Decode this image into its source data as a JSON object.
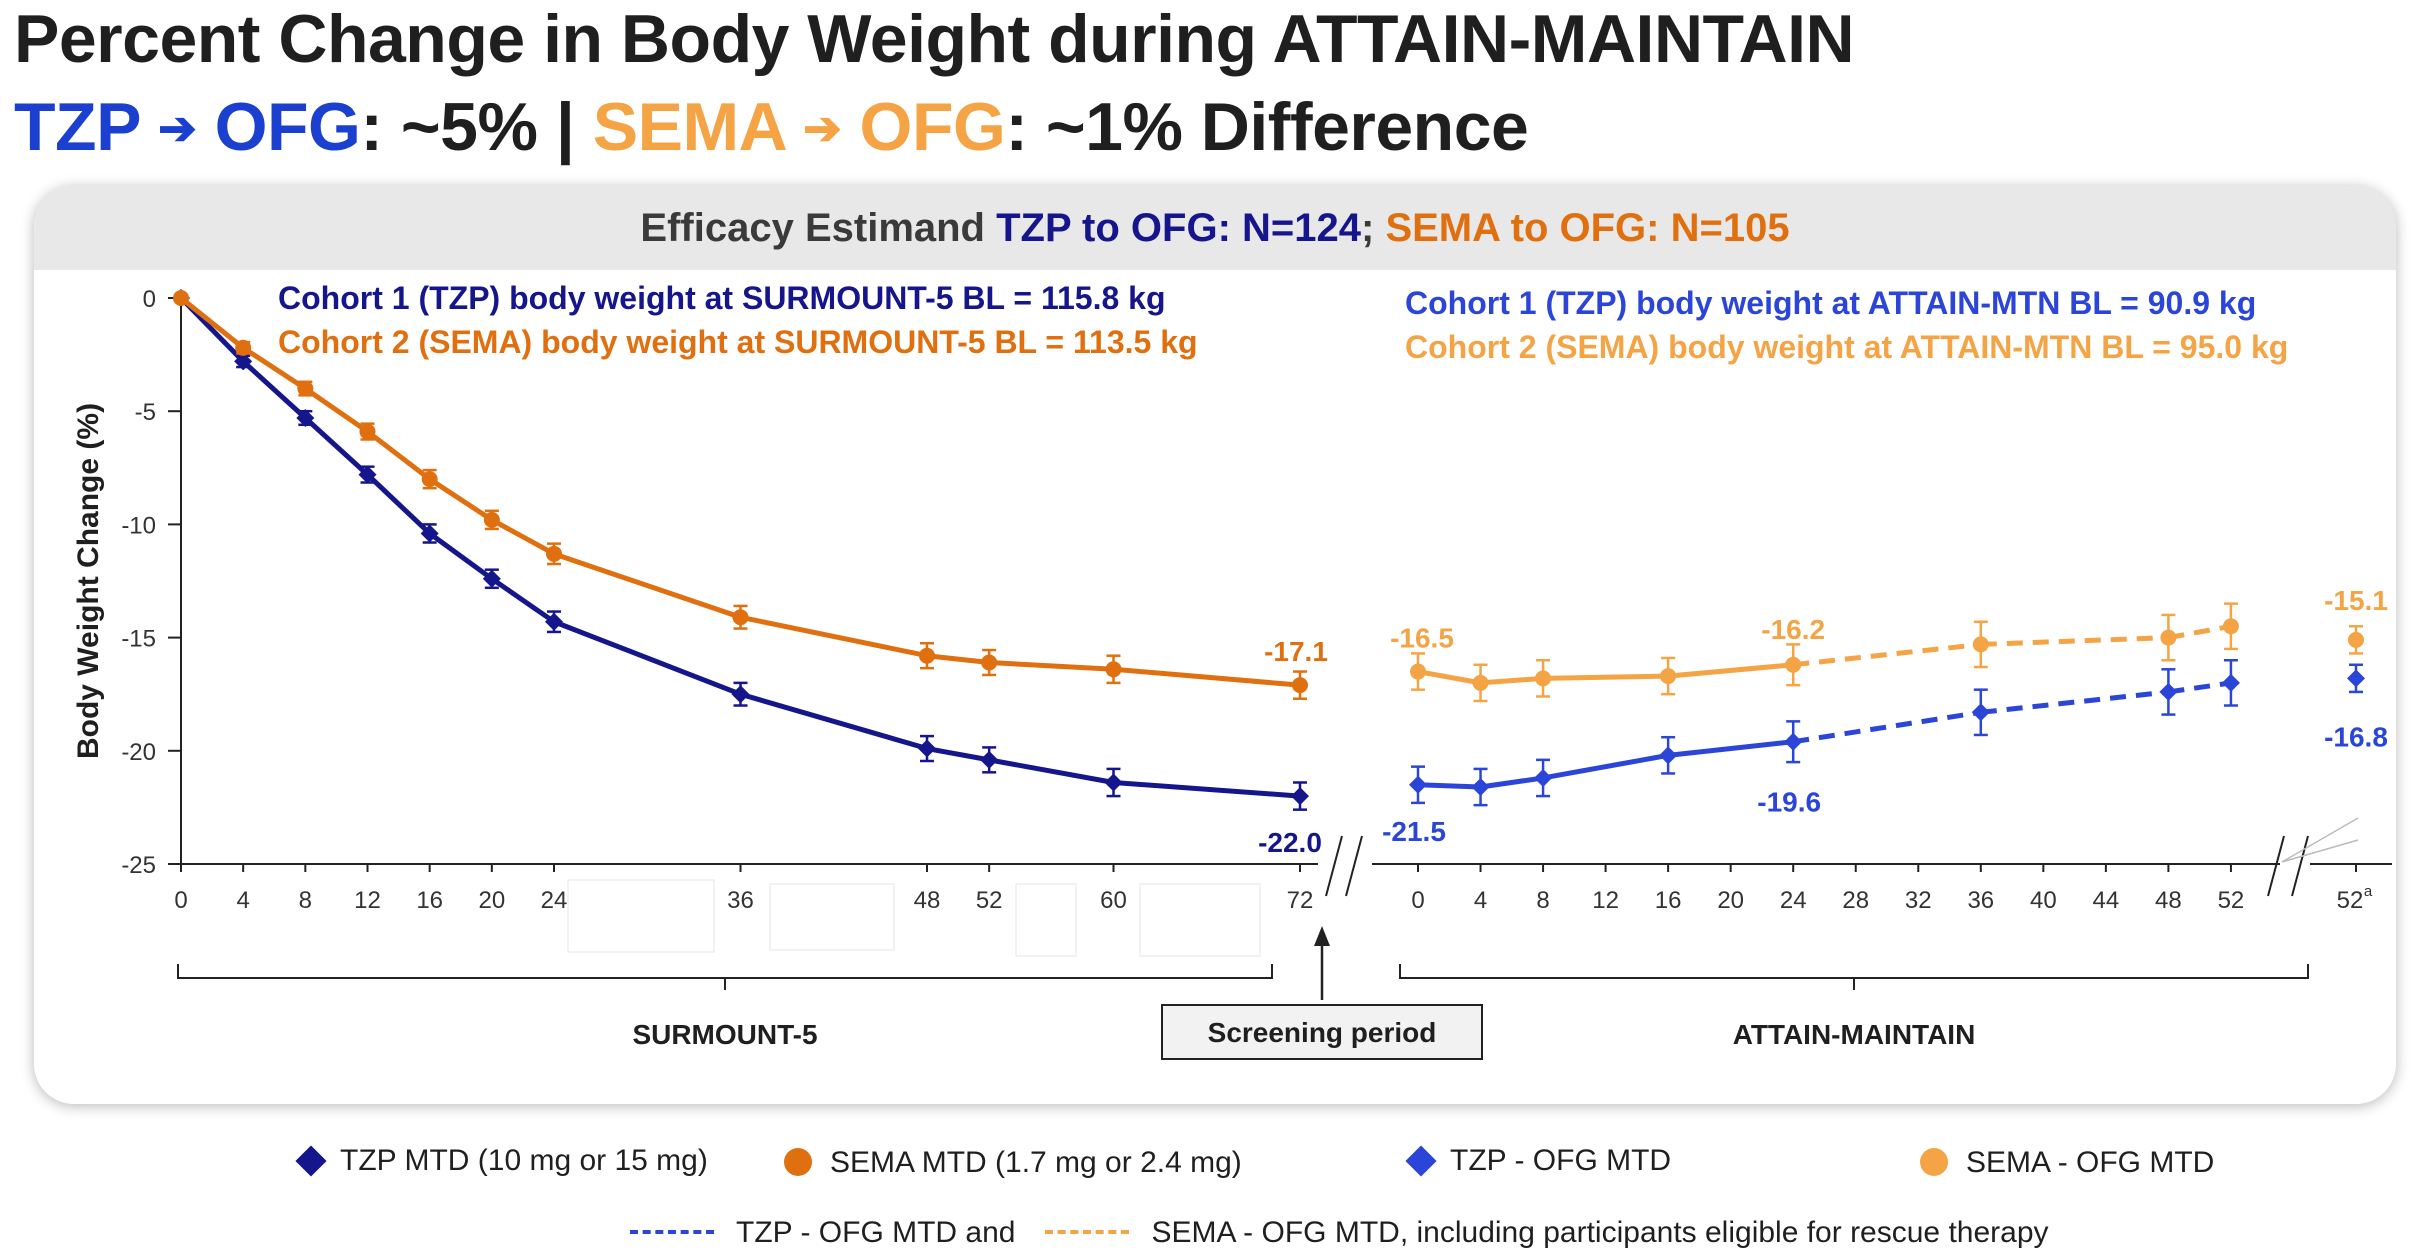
{
  "header": {
    "title": "Percent Change in Body Weight during ATTAIN-MAINTAIN",
    "subtitle_parts": {
      "tzp": "TZP",
      "arrow1": "➔",
      "ofg1": "OFG",
      "mid": ": ~5% | ",
      "sema": "SEMA",
      "arrow2": "➔",
      "ofg2": "OFG",
      "tail": ": ~1% Difference"
    }
  },
  "colors": {
    "tzp_dark": "#15158c",
    "sema_dark": "#e0700f",
    "tzp_light": "#2a45d8",
    "sema_light": "#f5a445",
    "subtitle_blue": "#1b3fcf",
    "subtitle_orange": "#f5a445"
  },
  "card": {
    "header_prefix": "Efficacy Estimand ",
    "header_tzp": "TZP to OFG: N=124",
    "header_sep": "; ",
    "header_sema": "SEMA to OFG: N=105"
  },
  "chart_data": {
    "type": "line",
    "ylabel": "Body Weight Change (%)",
    "ylim": [
      -25,
      0
    ],
    "yticks": [
      "0",
      "-5",
      "-10",
      "-15",
      "-20",
      "-25"
    ],
    "ytick_values": [
      0,
      -5,
      -10,
      -15,
      -20,
      -25
    ],
    "panels": [
      {
        "name": "SURMOUNT-5",
        "xticks": [
          0,
          4,
          8,
          12,
          16,
          20,
          24,
          36,
          48,
          52,
          60,
          72
        ],
        "xlim": [
          0,
          72
        ],
        "notes": [
          {
            "text": "Cohort 1 (TZP) body weight at SURMOUNT-5 BL = 115.8 kg",
            "series": "tzp"
          },
          {
            "text": "Cohort 2 (SEMA) body weight at SURMOUNT-5  BL = 113.5 kg",
            "series": "sema"
          }
        ],
        "series": [
          {
            "key": "tzp",
            "x": [
              0,
              4,
              8,
              12,
              16,
              20,
              24,
              36,
              48,
              52,
              60,
              72
            ],
            "y": [
              0,
              -2.8,
              -5.3,
              -7.8,
              -10.4,
              -12.4,
              -14.3,
              -17.5,
              -19.9,
              -20.4,
              -21.4,
              -22.0
            ],
            "err": [
              0,
              0.25,
              0.3,
              0.35,
              0.4,
              0.4,
              0.45,
              0.5,
              0.55,
              0.55,
              0.6,
              0.6
            ],
            "dashed_from": null,
            "end_label": "-22.0"
          },
          {
            "key": "sema",
            "x": [
              0,
              4,
              8,
              12,
              16,
              20,
              24,
              36,
              48,
              52,
              60,
              72
            ],
            "y": [
              0,
              -2.2,
              -4.0,
              -5.9,
              -8.0,
              -9.8,
              -11.3,
              -14.1,
              -15.8,
              -16.1,
              -16.4,
              -17.1
            ],
            "err": [
              0,
              0.25,
              0.3,
              0.35,
              0.4,
              0.4,
              0.45,
              0.5,
              0.55,
              0.55,
              0.6,
              0.6
            ],
            "dashed_from": null,
            "end_label": "-17.1"
          }
        ]
      },
      {
        "name": "ATTAIN-MAINTAIN",
        "xticks": [
          "0",
          "4",
          "8",
          "12",
          "16",
          "20",
          "24",
          "28",
          "32",
          "36",
          "40",
          "44",
          "48",
          "52",
          "52a"
        ],
        "xlim": [
          0,
          60
        ],
        "notes": [
          {
            "text": "Cohort 1 (TZP) body weight at ATTAIN-MTN BL = 90.9 kg",
            "series": "tzp_ofg"
          },
          {
            "text": "Cohort 2 (SEMA)  body weight at ATTAIN-MTN BL = 95.0 kg",
            "series": "sema_ofg"
          }
        ],
        "series": [
          {
            "key": "tzp_ofg",
            "x": [
              0,
              4,
              8,
              16,
              24,
              36,
              48,
              52,
              60
            ],
            "y": [
              -21.5,
              -21.6,
              -21.2,
              -20.2,
              -19.6,
              -18.3,
              -17.4,
              -17.0,
              -16.8
            ],
            "err": [
              0.8,
              0.8,
              0.8,
              0.8,
              0.9,
              1.0,
              1.0,
              1.0,
              0.6
            ],
            "dashed_from": 24,
            "labels": [
              {
                "at": 0,
                "text": "-21.5"
              },
              {
                "at": 24,
                "text": "-19.6"
              },
              {
                "at": 60,
                "text": "-16.8"
              }
            ]
          },
          {
            "key": "sema_ofg",
            "x": [
              0,
              4,
              8,
              16,
              24,
              36,
              48,
              52,
              60
            ],
            "y": [
              -16.5,
              -17.0,
              -16.8,
              -16.7,
              -16.2,
              -15.3,
              -15.0,
              -14.5,
              -15.1
            ],
            "err": [
              0.8,
              0.8,
              0.8,
              0.8,
              0.9,
              1.0,
              1.0,
              1.0,
              0.6
            ],
            "dashed_from": 24,
            "labels": [
              {
                "at": 0,
                "text": "-16.5"
              },
              {
                "at": 24,
                "text": "-16.2"
              },
              {
                "at": 60,
                "text": "-15.1"
              }
            ]
          }
        ]
      }
    ],
    "screening_label": "Screening period"
  },
  "legend": {
    "tzp": "TZP MTD (10 mg or 15 mg)",
    "sema": "SEMA MTD (1.7 mg or 2.4 mg)",
    "tzp_ofg": "TZP - OFG MTD",
    "sema_ofg": "SEMA - OFG MTD",
    "dash_tzp": "TZP - OFG MTD and",
    "dash_sema": "SEMA - OFG MTD, including participants eligible for rescue therapy"
  }
}
